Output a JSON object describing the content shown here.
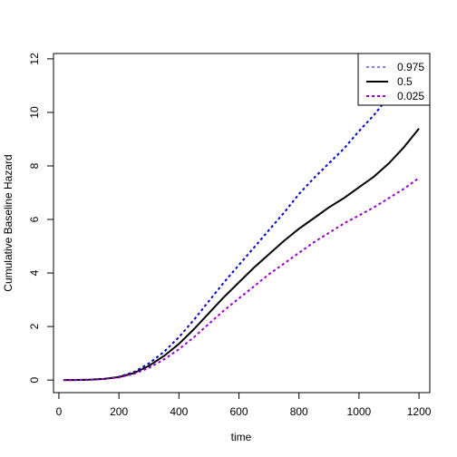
{
  "chart_data": {
    "type": "line",
    "title": "",
    "xlabel": "time",
    "ylabel": "Cumulative Baseline Hazard",
    "xlim": [
      -18,
      1236
    ],
    "ylim": [
      -0.47,
      12.2
    ],
    "xticks": [
      0,
      200,
      400,
      600,
      800,
      1000,
      1200
    ],
    "yticks": [
      0,
      2,
      4,
      6,
      8,
      10,
      12
    ],
    "grid": false,
    "legend_position": "top-right",
    "series": [
      {
        "name": "0.975",
        "color": "#0000cc",
        "style": "dashed",
        "x": [
          15,
          50,
          100,
          150,
          200,
          250,
          300,
          350,
          400,
          450,
          500,
          550,
          600,
          650,
          700,
          750,
          800,
          850,
          900,
          950,
          1000,
          1050,
          1100,
          1150,
          1200
        ],
        "y": [
          0.0,
          0.0,
          0.01,
          0.04,
          0.12,
          0.3,
          0.62,
          1.05,
          1.6,
          2.25,
          2.95,
          3.65,
          4.3,
          4.95,
          5.6,
          6.25,
          6.95,
          7.55,
          8.1,
          8.65,
          9.3,
          9.9,
          10.6,
          11.3,
          12.0
        ]
      },
      {
        "name": "0.5",
        "color": "#000000",
        "style": "solid",
        "x": [
          15,
          50,
          100,
          150,
          200,
          250,
          300,
          350,
          400,
          450,
          500,
          550,
          600,
          650,
          700,
          750,
          800,
          850,
          900,
          950,
          1000,
          1050,
          1100,
          1150,
          1200
        ],
        "y": [
          0.0,
          0.0,
          0.01,
          0.04,
          0.11,
          0.26,
          0.53,
          0.9,
          1.35,
          1.9,
          2.5,
          3.1,
          3.65,
          4.2,
          4.7,
          5.2,
          5.65,
          6.05,
          6.45,
          6.8,
          7.2,
          7.6,
          8.1,
          8.7,
          9.4
        ]
      },
      {
        "name": "0.025",
        "color": "#9900cc",
        "style": "dashed",
        "x": [
          15,
          50,
          100,
          150,
          200,
          250,
          300,
          350,
          400,
          450,
          500,
          550,
          600,
          650,
          700,
          750,
          800,
          850,
          900,
          950,
          1000,
          1050,
          1100,
          1150,
          1200
        ],
        "y": [
          0.0,
          0.0,
          0.01,
          0.04,
          0.1,
          0.23,
          0.45,
          0.77,
          1.15,
          1.6,
          2.1,
          2.6,
          3.05,
          3.5,
          3.95,
          4.35,
          4.75,
          5.15,
          5.5,
          5.85,
          6.15,
          6.45,
          6.8,
          7.15,
          7.55
        ]
      }
    ]
  }
}
